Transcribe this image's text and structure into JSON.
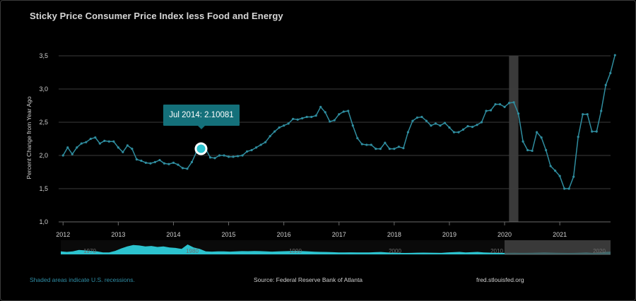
{
  "title": "Sticky Price Consumer Price Index less Food and Energy",
  "tooltip": {
    "label": "Jul 2014: 2.10081"
  },
  "footer": {
    "recession_note": "Shaded areas indicate U.S. recessions.",
    "source": "Source: Federal Reserve Bank of Atlanta",
    "site": "fred.stlouisfed.org"
  },
  "colors": {
    "line": "#2f8d9f",
    "accent": "#14707a",
    "navigator": "#2cc3cf",
    "recession": "#3a3a3a"
  },
  "chart_data": {
    "type": "line",
    "title": "Sticky Price Consumer Price Index less Food and Energy",
    "ylabel": "Percent Change from Year Ago",
    "xlabel": "",
    "ylim": [
      1.0,
      3.5
    ],
    "yticks": [
      "1,0",
      "1,5",
      "2,0",
      "2,5",
      "3,0",
      "3,5"
    ],
    "xlim": [
      2011.92,
      2021.92
    ],
    "xticks": [
      "2012",
      "2013",
      "2014",
      "2015",
      "2016",
      "2017",
      "2018",
      "2019",
      "2020",
      "2021"
    ],
    "grid": true,
    "recessions": [
      {
        "start": 2020.08,
        "end": 2020.25
      }
    ],
    "highlight": {
      "label": "Jul 2014",
      "value": 2.10081
    },
    "series": [
      {
        "values": [
          2.0,
          2.12,
          2.02,
          2.12,
          2.18,
          2.2,
          2.25,
          2.27,
          2.18,
          2.22,
          2.21,
          2.21,
          2.12,
          2.05,
          2.15,
          2.1,
          1.94,
          1.92,
          1.89,
          1.88,
          1.9,
          1.93,
          1.88,
          1.87,
          1.89,
          1.86,
          1.81,
          1.8,
          1.9,
          2.05,
          2.13,
          2.1,
          1.97,
          1.96,
          2.0,
          2.0,
          1.98,
          1.98,
          1.99,
          2.0,
          2.06,
          2.08,
          2.12,
          2.16,
          2.2,
          2.29,
          2.36,
          2.42,
          2.45,
          2.48,
          2.55,
          2.54,
          2.56,
          2.58,
          2.58,
          2.6,
          2.73,
          2.65,
          2.51,
          2.53,
          2.62,
          2.66,
          2.67,
          2.45,
          2.26,
          2.17,
          2.16,
          2.16,
          2.1,
          2.1,
          2.19,
          2.1,
          2.1,
          2.13,
          2.11,
          2.35,
          2.52,
          2.57,
          2.58,
          2.52,
          2.45,
          2.48,
          2.45,
          2.49,
          2.42,
          2.35,
          2.35,
          2.39,
          2.44,
          2.43,
          2.46,
          2.5,
          2.67,
          2.68,
          2.77,
          2.77,
          2.73,
          2.79,
          2.8,
          2.63,
          2.21,
          2.08,
          2.07,
          2.35,
          2.27,
          2.08,
          1.84,
          1.77,
          1.69,
          1.5,
          1.5,
          1.68,
          2.28,
          2.62,
          2.62,
          2.36,
          2.36,
          2.67,
          3.06,
          3.24,
          3.51
        ]
      }
    ],
    "navigator": {
      "labels": [
        "1970",
        "1980",
        "1990",
        "2000",
        "2010",
        "2020"
      ]
    }
  }
}
